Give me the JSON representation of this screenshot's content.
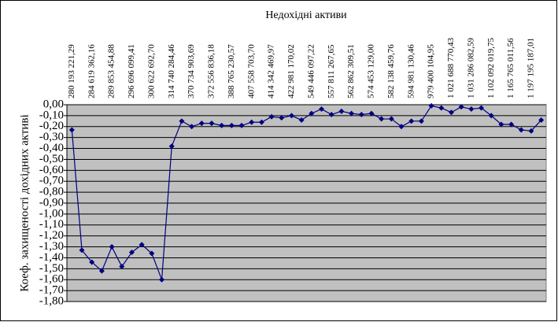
{
  "chart_data": {
    "type": "line",
    "title": "Недохідні активи",
    "y_label": "Коеф. захищеності дохідних активі",
    "categories": [
      "280 193 221,29",
      null,
      "284 619 362,16",
      null,
      "289 853 454,88",
      null,
      "296 696 099,41",
      null,
      "300 622 692,70",
      null,
      "314 740 284,46",
      null,
      "370 734 903,69",
      null,
      "372 556 836,18",
      null,
      "388 765 230,57",
      null,
      "407 558 703,70",
      null,
      "414 342 469,97",
      null,
      "422 981 170,02",
      null,
      "549 446 097,22",
      null,
      "557 811 267,65",
      null,
      "562 862 309,51",
      null,
      "574 453 129,00",
      null,
      "582 138 459,76",
      null,
      "594 981 130,46",
      null,
      "979 400 104,95",
      null,
      "1 021 688 770,43",
      null,
      "1 031 286 082,59",
      null,
      "1 102 092 019,75",
      null,
      "1 165 765 011,56",
      null,
      "1 197 195 187,01",
      null
    ],
    "values": [
      -0.23,
      -1.33,
      -1.44,
      -1.52,
      -1.3,
      -1.48,
      -1.35,
      -1.28,
      -1.36,
      -1.6,
      -0.38,
      -0.15,
      -0.2,
      -0.17,
      -0.17,
      -0.19,
      -0.19,
      -0.19,
      -0.16,
      -0.16,
      -0.11,
      -0.12,
      -0.1,
      -0.14,
      -0.08,
      -0.04,
      -0.09,
      -0.06,
      -0.08,
      -0.09,
      -0.08,
      -0.13,
      -0.13,
      -0.2,
      -0.15,
      -0.15,
      -0.01,
      -0.03,
      -0.07,
      -0.02,
      -0.04,
      -0.03,
      -0.1,
      -0.18,
      -0.18,
      -0.23,
      -0.24,
      -0.14
    ],
    "color": "#000080",
    "ylim": [
      -1.8,
      0
    ],
    "yticks": [
      {
        "value": 0,
        "label": "0,00"
      },
      {
        "value": -0.1,
        "label": "-0,10"
      },
      {
        "value": -0.2,
        "label": "-0,20"
      },
      {
        "value": -0.3,
        "label": "-0,30"
      },
      {
        "value": -0.4,
        "label": "-0,40"
      },
      {
        "value": -0.5,
        "label": "-0,50"
      },
      {
        "value": -0.6,
        "label": "-0,60"
      },
      {
        "value": -0.7,
        "label": "-0,70"
      },
      {
        "value": -0.8,
        "label": "-0,80"
      },
      {
        "value": -0.9,
        "label": "-0,90"
      },
      {
        "value": -1.0,
        "label": "-1,00"
      },
      {
        "value": -1.1,
        "label": "-1,10"
      },
      {
        "value": -1.2,
        "label": "-1,20"
      },
      {
        "value": -1.3,
        "label": "-1,30"
      },
      {
        "value": -1.4,
        "label": "-1,40"
      },
      {
        "value": -1.5,
        "label": "-1,50"
      },
      {
        "value": -1.6,
        "label": "-1,60"
      },
      {
        "value": -1.7,
        "label": "-1,70"
      },
      {
        "value": -1.8,
        "label": "-1,80"
      }
    ],
    "grid": true
  }
}
